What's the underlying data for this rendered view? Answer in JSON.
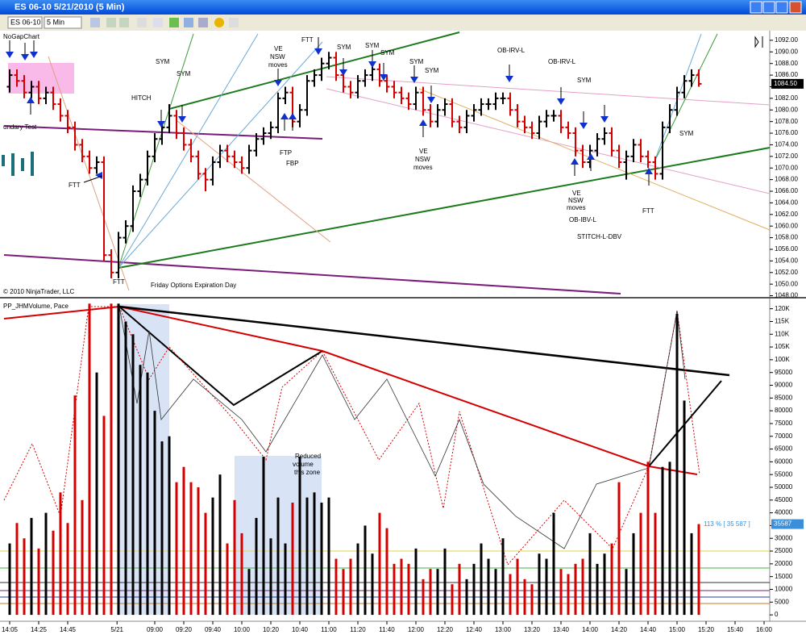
{
  "window": {
    "title": "ES 06-10  5/21/2010 (5 Min)"
  },
  "toolbar": {
    "instrument": "ES 06-10",
    "interval": "5 Min"
  },
  "chart_data": [
    {
      "type": "ohlc",
      "title": "NoGapChart",
      "copyright": "© 2010 NinjaTrader, LLC",
      "up_color": "#000000",
      "down_color": "#d40000",
      "open": [
        1084,
        1086,
        1085,
        1083,
        1084,
        1082,
        1083,
        1081,
        1079,
        1077,
        1074,
        1072,
        1070,
        1071,
        1055,
        1052,
        1058,
        1060,
        1066,
        1068,
        1072,
        1075,
        1077,
        1079,
        1076,
        1074,
        1072,
        1069,
        1068,
        1071,
        1073,
        1072,
        1071,
        1070,
        1073,
        1075,
        1076,
        1077,
        1082,
        1083,
        1078,
        1080,
        1085,
        1086,
        1088,
        1089,
        1086,
        1084,
        1083,
        1085,
        1086,
        1087,
        1085,
        1084,
        1083,
        1082,
        1081,
        1083,
        1080,
        1078,
        1080,
        1081,
        1078,
        1077,
        1079,
        1080,
        1081,
        1081,
        1082,
        1082,
        1080,
        1078,
        1077,
        1076,
        1078,
        1079,
        1079,
        1077,
        1076,
        1073,
        1071,
        1073,
        1075,
        1076,
        1073,
        1071,
        1072,
        1074,
        1072,
        1071,
        1069,
        1077,
        1080,
        1083,
        1085,
        1086
      ],
      "high": [
        1087,
        1087,
        1086,
        1085,
        1085,
        1084,
        1084,
        1082,
        1080,
        1078,
        1075,
        1073,
        1072,
        1072,
        1056,
        1059,
        1061,
        1067,
        1069,
        1073,
        1076,
        1078,
        1081,
        1080,
        1077,
        1075,
        1073,
        1070,
        1072,
        1074,
        1074,
        1073,
        1072,
        1074,
        1076,
        1077,
        1078,
        1083,
        1084,
        1084,
        1081,
        1086,
        1087,
        1089,
        1090,
        1090,
        1087,
        1085,
        1086,
        1087,
        1088,
        1088,
        1086,
        1085,
        1084,
        1083,
        1084,
        1084,
        1081,
        1081,
        1082,
        1082,
        1079,
        1080,
        1081,
        1082,
        1082,
        1083,
        1083,
        1083,
        1081,
        1079,
        1078,
        1079,
        1080,
        1080,
        1080,
        1078,
        1077,
        1074,
        1074,
        1076,
        1077,
        1077,
        1074,
        1073,
        1075,
        1075,
        1073,
        1072,
        1078,
        1081,
        1084,
        1086,
        1087,
        1087
      ],
      "low": [
        1083,
        1084,
        1082,
        1082,
        1081,
        1081,
        1080,
        1078,
        1076,
        1073,
        1071,
        1069,
        1069,
        1054,
        1051,
        1051,
        1057,
        1059,
        1065,
        1067,
        1071,
        1074,
        1076,
        1075,
        1073,
        1071,
        1068,
        1066,
        1067,
        1070,
        1071,
        1070,
        1069,
        1069,
        1072,
        1074,
        1075,
        1076,
        1081,
        1077,
        1077,
        1079,
        1084,
        1085,
        1087,
        1085,
        1083,
        1082,
        1082,
        1084,
        1085,
        1084,
        1083,
        1082,
        1081,
        1080,
        1080,
        1079,
        1077,
        1077,
        1079,
        1077,
        1076,
        1076,
        1078,
        1079,
        1080,
        1080,
        1081,
        1079,
        1077,
        1076,
        1075,
        1075,
        1077,
        1078,
        1076,
        1075,
        1072,
        1070,
        1070,
        1072,
        1074,
        1072,
        1070,
        1068,
        1071,
        1071,
        1070,
        1068,
        1068,
        1076,
        1079,
        1082,
        1084,
        1084
      ],
      "close": [
        1086,
        1085,
        1083,
        1084,
        1082,
        1083,
        1081,
        1079,
        1077,
        1074,
        1072,
        1070,
        1071,
        1055,
        1052,
        1058,
        1060,
        1066,
        1068,
        1072,
        1075,
        1077,
        1079,
        1076,
        1074,
        1072,
        1069,
        1068,
        1071,
        1073,
        1072,
        1071,
        1070,
        1073,
        1075,
        1076,
        1077,
        1082,
        1083,
        1078,
        1080,
        1085,
        1086,
        1088,
        1089,
        1086,
        1084,
        1083,
        1085,
        1086,
        1087,
        1085,
        1084,
        1083,
        1082,
        1081,
        1083,
        1080,
        1078,
        1080,
        1081,
        1078,
        1077,
        1079,
        1080,
        1081,
        1081,
        1082,
        1082,
        1080,
        1078,
        1077,
        1076,
        1078,
        1079,
        1079,
        1077,
        1076,
        1073,
        1071,
        1073,
        1075,
        1076,
        1073,
        1071,
        1072,
        1074,
        1072,
        1071,
        1069,
        1077,
        1080,
        1083,
        1085,
        1086,
        1084.5
      ],
      "last_close_label": "1084.50",
      "ylim": [
        1047.8,
        1093.1
      ],
      "yticks": [
        {
          "value": 1048,
          "label": "1048.00"
        },
        {
          "value": 1050,
          "label": "1050.00"
        },
        {
          "value": 1052,
          "label": "1052.00"
        },
        {
          "value": 1054,
          "label": "1054.00"
        },
        {
          "value": 1056,
          "label": "1056.00"
        },
        {
          "value": 1058,
          "label": "1058.00"
        },
        {
          "value": 1060,
          "label": "1060.00"
        },
        {
          "value": 1062,
          "label": "1062.00"
        },
        {
          "value": 1064,
          "label": "1064.00"
        },
        {
          "value": 1066,
          "label": "1066.00"
        },
        {
          "value": 1068,
          "label": "1068.00"
        },
        {
          "value": 1070,
          "label": "1070.00"
        },
        {
          "value": 1072,
          "label": "1072.00"
        },
        {
          "value": 1074,
          "label": "1074.00"
        },
        {
          "value": 1076,
          "label": "1076.00"
        },
        {
          "value": 1078,
          "label": "1078.00"
        },
        {
          "value": 1080,
          "label": "1080.00"
        },
        {
          "value": 1082,
          "label": "1082.00"
        },
        {
          "value": 1084,
          "label": "1084.00"
        },
        {
          "value": 1086,
          "label": "1086.00"
        },
        {
          "value": 1088,
          "label": "1088.00"
        },
        {
          "value": 1090,
          "label": "1090.00"
        },
        {
          "value": 1092,
          "label": "1092.00"
        }
      ],
      "annotations": [
        "undary Test",
        "FTT",
        "FTT",
        "HITCH",
        "SYM",
        "SYM",
        "Friday Options Expiration Day",
        "FTT",
        "VE",
        "NSW",
        "moves",
        "FTP",
        "FBP",
        "SYM",
        "SYM",
        "SYM",
        "SYM",
        "SYM",
        "VE",
        "NSW",
        "moves",
        "OB-IRV-L",
        "OB-IRV-L",
        "SYM",
        "SYM",
        "VE",
        "NSW",
        "moves",
        "OB-IBV-L",
        "STITCH-L-DBV",
        "FTT"
      ]
    },
    {
      "type": "bar",
      "title": "PP_JHMVolume, Pace",
      "values": [
        28000,
        36000,
        30000,
        38000,
        26000,
        40000,
        33000,
        48000,
        36000,
        86000,
        45000,
        122000,
        95000,
        78000,
        122000,
        122000,
        115000,
        110000,
        98000,
        95000,
        80000,
        68000,
        70000,
        52000,
        58000,
        52000,
        50000,
        40000,
        46000,
        55000,
        28000,
        45000,
        32000,
        18000,
        38000,
        62000,
        30000,
        46000,
        28000,
        44000,
        62000,
        46000,
        48000,
        44000,
        46000,
        22000,
        18000,
        22000,
        28000,
        35000,
        24000,
        40000,
        34000,
        20000,
        22000,
        20000,
        26000,
        14000,
        18000,
        18000,
        26000,
        12000,
        20000,
        14000,
        20000,
        28000,
        22000,
        18000,
        30000,
        16000,
        22000,
        14000,
        12000,
        24000,
        22000,
        40000,
        18000,
        16000,
        20000,
        22000,
        32000,
        20000,
        24000,
        28000,
        52000,
        18000,
        32000,
        40000,
        60000,
        40000,
        58000,
        60000,
        118000,
        84000,
        32000,
        35587
      ],
      "ylim": [
        -2500,
        124000
      ],
      "yticks": [
        0,
        5000,
        10000,
        15000,
        20000,
        25000,
        30000,
        35000,
        40000,
        45000,
        50000,
        55000,
        60000,
        65000,
        70000,
        75000,
        80000,
        85000,
        90000,
        95000,
        {
          "value": 100000,
          "label": "100K"
        },
        {
          "value": 105000,
          "label": "105K"
        },
        {
          "value": 110000,
          "label": "110K"
        },
        {
          "value": 115000,
          "label": "115K"
        },
        {
          "value": 120000,
          "label": "120K"
        }
      ],
      "pace_label": "113 % [ 35 587 ]",
      "annotations": [
        "Reduced",
        "volume",
        "this zone"
      ],
      "time_labels": [
        "14:05",
        "14:25",
        "14:45",
        "5/21",
        "09:00",
        "09:20",
        "09:40",
        "10:00",
        "10:20",
        "10:40",
        "11:00",
        "11:20",
        "11:40",
        "12:00",
        "12:20",
        "12:40",
        "13:00",
        "13:20",
        "13:40",
        "14:00",
        "14:20",
        "14:40",
        "15:00",
        "15:20",
        "15:40",
        "16:00"
      ]
    }
  ]
}
